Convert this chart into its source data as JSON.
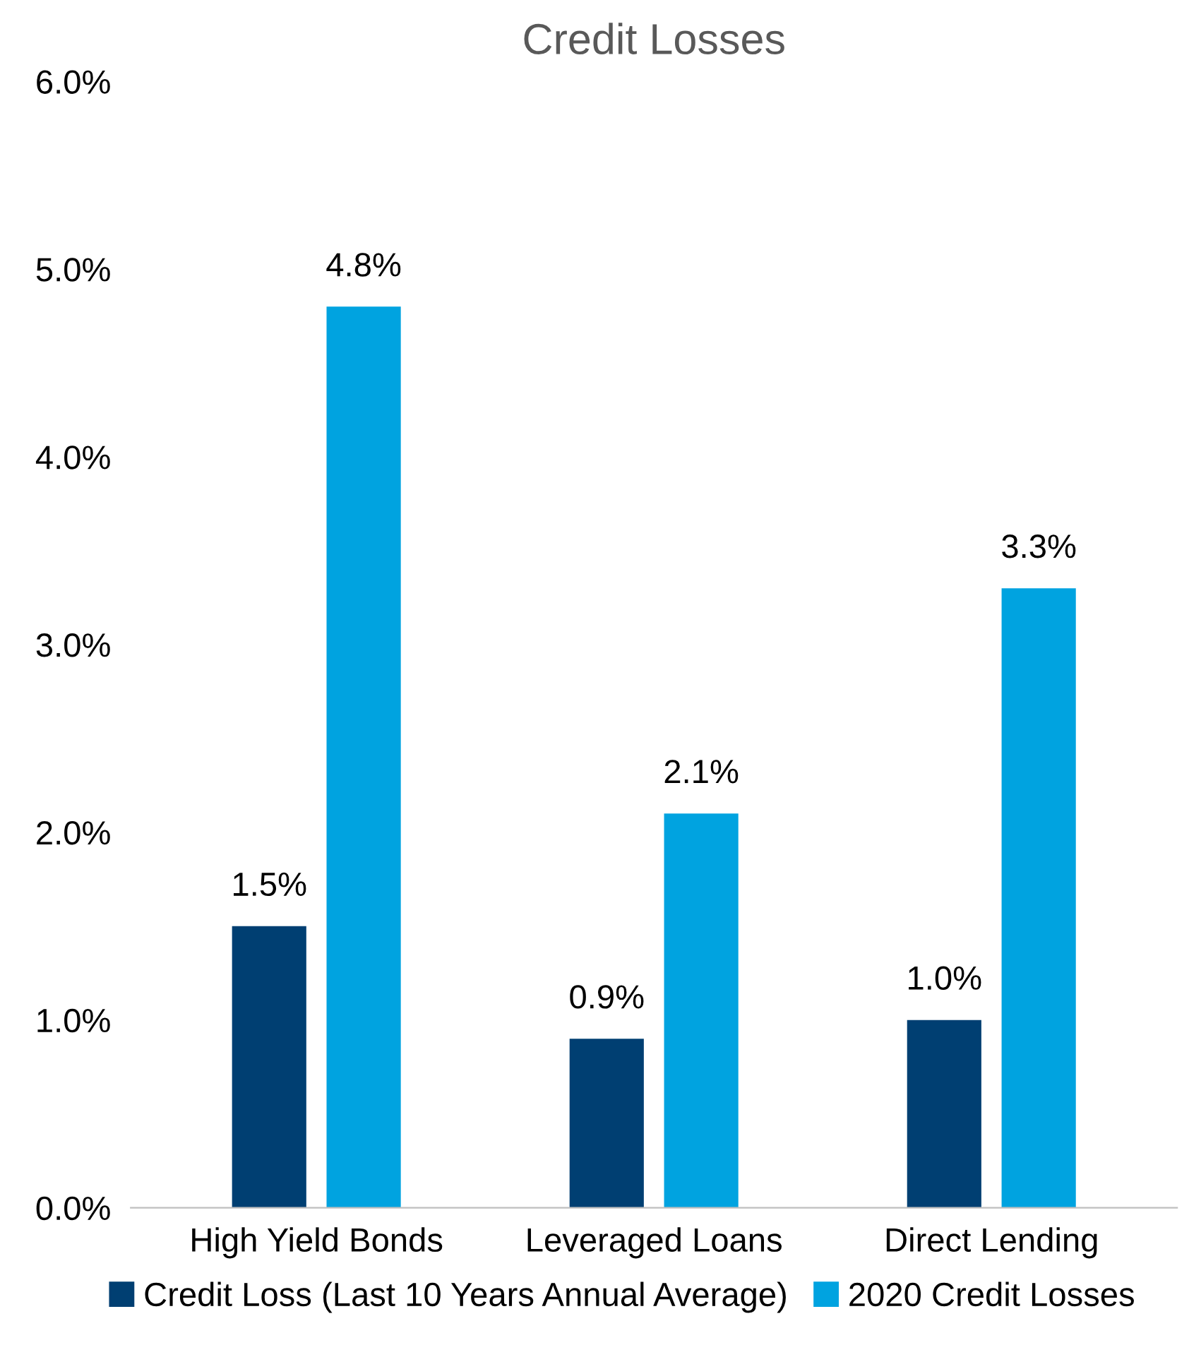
{
  "chart_data": {
    "type": "bar",
    "title": "Credit Losses",
    "categories": [
      "High Yield Bonds",
      "Leveraged Loans",
      "Direct Lending"
    ],
    "series": [
      {
        "name": "Credit Loss (Last 10 Years Annual Average)",
        "color": "#003f72",
        "values": [
          1.5,
          0.9,
          1.0
        ],
        "value_labels": [
          "1.5%",
          "0.9%",
          "1.0%"
        ]
      },
      {
        "name": "2020 Credit Losses",
        "color": "#00a3e0",
        "values": [
          4.8,
          2.1,
          3.3
        ],
        "value_labels": [
          "4.8%",
          "2.1%",
          "3.3%"
        ]
      }
    ],
    "ylim": [
      0,
      6
    ],
    "yticks": [
      {
        "value": 0,
        "label": "0.0%"
      },
      {
        "value": 1,
        "label": "1.0%"
      },
      {
        "value": 2,
        "label": "2.0%"
      },
      {
        "value": 3,
        "label": "3.0%"
      },
      {
        "value": 4,
        "label": "4.0%"
      },
      {
        "value": 5,
        "label": "5.0%"
      },
      {
        "value": 6,
        "label": "6.0%"
      }
    ],
    "grid": false,
    "legend": "bottom"
  }
}
